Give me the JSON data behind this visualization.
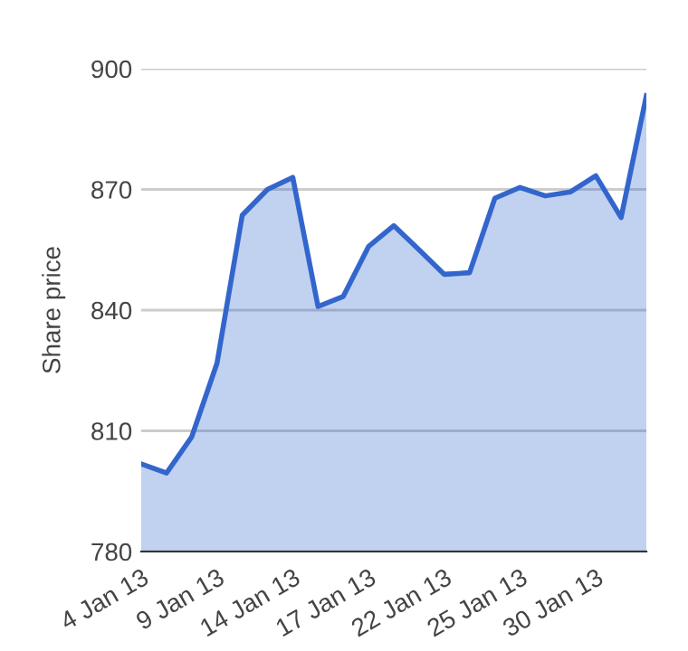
{
  "chart_data": {
    "type": "area",
    "ylabel": "Share price",
    "categories": [
      "4 Jan 13",
      null,
      null,
      "9 Jan 13",
      null,
      null,
      "14 Jan 13",
      null,
      null,
      "17 Jan 13",
      null,
      null,
      "22 Jan 13",
      null,
      null,
      "25 Jan 13",
      null,
      null,
      "30 Jan 13",
      null,
      null
    ],
    "series": [
      {
        "color": "#3366cc",
        "values": [
          801.8,
          799.5,
          808.5,
          826.8,
          863.6,
          870,
          873,
          840.9,
          843.4,
          855.8,
          861,
          855,
          848.9,
          849.3,
          867.8,
          870.5,
          868.4,
          869.4,
          873.4,
          863,
          893.3
        ]
      }
    ],
    "ylim": [
      780,
      900
    ],
    "yticks": [
      780,
      810,
      840,
      870,
      900
    ],
    "grid": "y"
  }
}
